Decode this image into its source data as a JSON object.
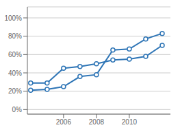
{
  "chart_data": {
    "type": "line",
    "x": [
      2004,
      2005,
      2006,
      2007,
      2008,
      2009,
      2010,
      2011,
      2012
    ],
    "series": [
      {
        "color": "#2e75b6",
        "marker": "circle",
        "values": [
          0.29,
          0.29,
          0.45,
          0.47,
          0.5,
          0.54,
          0.55,
          0.58,
          0.7
        ]
      },
      {
        "color": "#2e75b6",
        "marker": "circle",
        "values": [
          0.21,
          0.22,
          0.25,
          0.36,
          0.38,
          0.65,
          0.66,
          0.77,
          0.83
        ]
      }
    ],
    "xlim": [
      2003.8,
      2012.5
    ],
    "xticks": [
      2006,
      2008,
      2010
    ],
    "ylim": [
      -0.05,
      1.12
    ],
    "yticks": [
      {
        "value": 0.0,
        "label": "0%"
      },
      {
        "value": 0.2,
        "label": "20%"
      },
      {
        "value": 0.4,
        "label": "40%"
      },
      {
        "value": 0.6,
        "label": "60%"
      },
      {
        "value": 0.8,
        "label": "80%"
      },
      {
        "value": 1.0,
        "label": "100%"
      }
    ],
    "grid": true
  }
}
